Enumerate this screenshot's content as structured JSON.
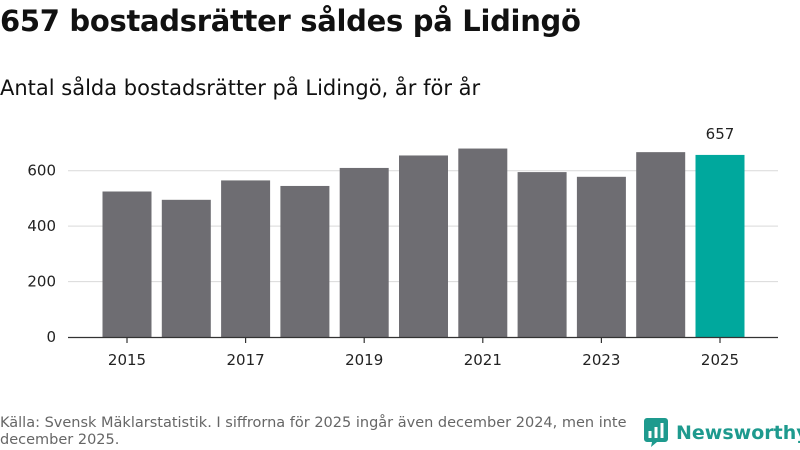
{
  "title": "657 bostadsrätter såldes på Lidingö",
  "subtitle": "Antal sålda bostadsrätter på Lidingö, år för år",
  "source": "Källa: Svensk Mäklarstatistik. I siffrorna för 2025 ingår även december 2024, men inte december 2025.",
  "logo_text": "Newsworthy",
  "colors": {
    "bar": "#6e6d72",
    "highlight": "#00a89d",
    "grid": "#d9d9d9",
    "axis": "#333333"
  },
  "chart_data": {
    "type": "bar",
    "title": "657 bostadsrätter såldes på Lidingö",
    "subtitle": "Antal sålda bostadsrätter på Lidingö, år för år",
    "xlabel": "",
    "ylabel": "",
    "ylim": [
      0,
      700
    ],
    "yticks": [
      0,
      200,
      400,
      600
    ],
    "grid": true,
    "categories": [
      "2015",
      "2016",
      "2017",
      "2018",
      "2019",
      "2020",
      "2021",
      "2022",
      "2023",
      "2024",
      "2025"
    ],
    "xtick_labels": [
      "2015",
      "2017",
      "2019",
      "2021",
      "2023",
      "2025"
    ],
    "values": [
      525,
      495,
      565,
      545,
      610,
      655,
      680,
      595,
      578,
      667,
      657
    ],
    "highlight_category": "2025",
    "annotations": [
      {
        "category": "2025",
        "text": "657"
      }
    ]
  }
}
